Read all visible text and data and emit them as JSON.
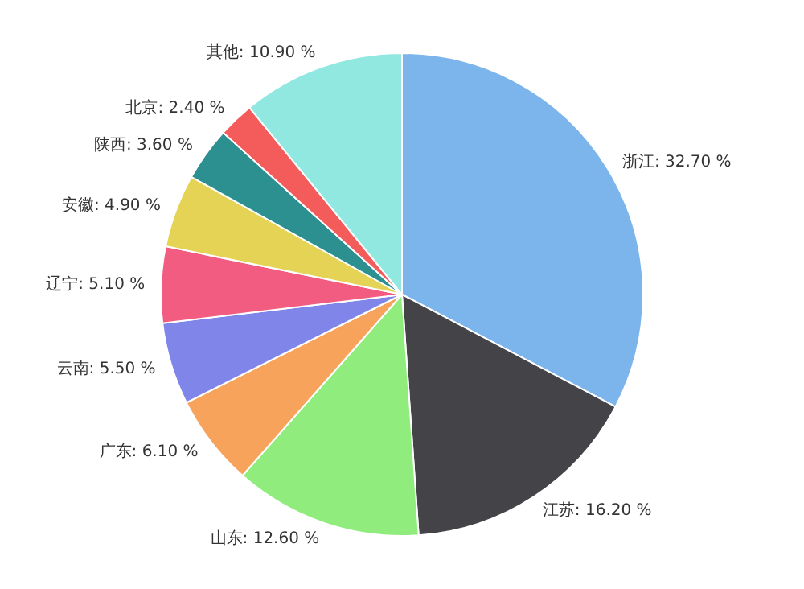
{
  "chart_data": {
    "type": "pie",
    "categories": [
      "浙江",
      "江苏",
      "山东",
      "广东",
      "云南",
      "辽宁",
      "安徽",
      "陕西",
      "北京",
      "其他"
    ],
    "values": [
      32.7,
      16.2,
      12.6,
      6.1,
      5.5,
      5.1,
      4.9,
      3.6,
      2.4,
      10.9
    ],
    "value_labels": [
      "32.70 %",
      "16.20 %",
      "12.60 %",
      "6.10 %",
      "5.50 %",
      "5.10 %",
      "4.90 %",
      "3.60 %",
      "2.40 %",
      "10.90 %"
    ],
    "colors": [
      "#7cb5ec",
      "#434348",
      "#90ed7d",
      "#f7a35c",
      "#8085e9",
      "#f15c80",
      "#e4d354",
      "#2b908f",
      "#f45b5b",
      "#91e8e1"
    ]
  }
}
